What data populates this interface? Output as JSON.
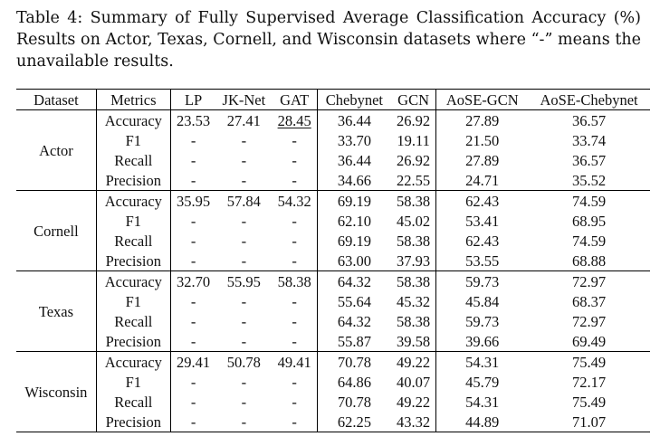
{
  "caption": "Table 4: Summary of Fully Supervised Average Classification Accuracy (%) Results on Actor, Texas, Cornell, and Wisconsin datasets where “-” means the unavailable results.",
  "table": {
    "headers": [
      "Dataset",
      "Metrics",
      "LP",
      "JK-Net",
      "GAT",
      "Chebynet",
      "GCN",
      "AoSE-GCN",
      "AoSE-Chebynet"
    ],
    "groups": [
      {
        "dataset": "Actor",
        "rows": [
          {
            "metric": "Accuracy",
            "lp": "23.53",
            "jknet": "27.41",
            "gat": "28.45",
            "chebynet": "36.44",
            "gcn": "26.92",
            "aose_gcn": "27.89",
            "aose_chebynet": "36.57"
          },
          {
            "metric": "F1",
            "lp": "-",
            "jknet": "-",
            "gat": "-",
            "chebynet": "33.70",
            "gcn": "19.11",
            "aose_gcn": "21.50",
            "aose_chebynet": "33.74"
          },
          {
            "metric": "Recall",
            "lp": "-",
            "jknet": "-",
            "gat": "-",
            "chebynet": "36.44",
            "gcn": "26.92",
            "aose_gcn": "27.89",
            "aose_chebynet": "36.57"
          },
          {
            "metric": "Precision",
            "lp": "-",
            "jknet": "-",
            "gat": "-",
            "chebynet": "34.66",
            "gcn": "22.55",
            "aose_gcn": "24.71",
            "aose_chebynet": "35.52"
          }
        ]
      },
      {
        "dataset": "Cornell",
        "rows": [
          {
            "metric": "Accuracy",
            "lp": "35.95",
            "jknet": "57.84",
            "gat": "54.32",
            "chebynet": "69.19",
            "gcn": "58.38",
            "aose_gcn": "62.43",
            "aose_chebynet": "74.59"
          },
          {
            "metric": "F1",
            "lp": "-",
            "jknet": "-",
            "gat": "-",
            "chebynet": "62.10",
            "gcn": "45.02",
            "aose_gcn": "53.41",
            "aose_chebynet": "68.95"
          },
          {
            "metric": "Recall",
            "lp": "-",
            "jknet": "-",
            "gat": "-",
            "chebynet": "69.19",
            "gcn": "58.38",
            "aose_gcn": "62.43",
            "aose_chebynet": "74.59"
          },
          {
            "metric": "Precision",
            "lp": "-",
            "jknet": "-",
            "gat": "-",
            "chebynet": "63.00",
            "gcn": "37.93",
            "aose_gcn": "53.55",
            "aose_chebynet": "68.88"
          }
        ]
      },
      {
        "dataset": "Texas",
        "rows": [
          {
            "metric": "Accuracy",
            "lp": "32.70",
            "jknet": "55.95",
            "gat": "58.38",
            "chebynet": "64.32",
            "gcn": "58.38",
            "aose_gcn": "59.73",
            "aose_chebynet": "72.97"
          },
          {
            "metric": "F1",
            "lp": "-",
            "jknet": "-",
            "gat": "-",
            "chebynet": "55.64",
            "gcn": "45.32",
            "aose_gcn": "45.84",
            "aose_chebynet": "68.37"
          },
          {
            "metric": "Recall",
            "lp": "-",
            "jknet": "-",
            "gat": "-",
            "chebynet": "64.32",
            "gcn": "58.38",
            "aose_gcn": "59.73",
            "aose_chebynet": "72.97"
          },
          {
            "metric": "Precision",
            "lp": "-",
            "jknet": "-",
            "gat": "-",
            "chebynet": "55.87",
            "gcn": "39.58",
            "aose_gcn": "39.66",
            "aose_chebynet": "69.49"
          }
        ]
      },
      {
        "dataset": "Wisconsin",
        "rows": [
          {
            "metric": "Accuracy",
            "lp": "29.41",
            "jknet": "50.78",
            "gat": "49.41",
            "chebynet": "70.78",
            "gcn": "49.22",
            "aose_gcn": "54.31",
            "aose_chebynet": "75.49"
          },
          {
            "metric": "F1",
            "lp": "-",
            "jknet": "-",
            "gat": "-",
            "chebynet": "64.86",
            "gcn": "40.07",
            "aose_gcn": "45.79",
            "aose_chebynet": "72.17"
          },
          {
            "metric": "Recall",
            "lp": "-",
            "jknet": "-",
            "gat": "-",
            "chebynet": "70.78",
            "gcn": "49.22",
            "aose_gcn": "54.31",
            "aose_chebynet": "75.49"
          },
          {
            "metric": "Precision",
            "lp": "-",
            "jknet": "-",
            "gat": "-",
            "chebynet": "62.25",
            "gcn": "43.32",
            "aose_gcn": "44.89",
            "aose_chebynet": "71.07"
          }
        ]
      }
    ]
  }
}
